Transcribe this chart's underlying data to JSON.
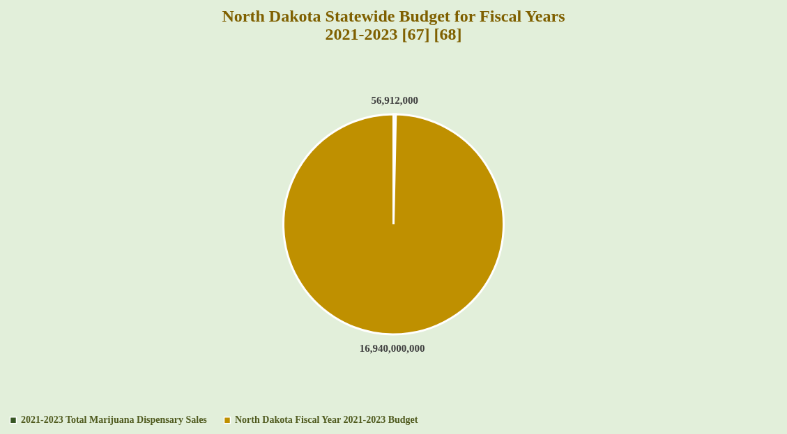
{
  "chart_data": {
    "type": "pie",
    "title": "North Dakota Statewide Budget for Fiscal Years 2021-2023 [67] [68]",
    "categories": [
      "2021-2023 Total Marijuana Dispensary Sales",
      "North Dakota Fiscal Year 2021-2023 Budget"
    ],
    "values": [
      56912000,
      16940000000
    ],
    "value_labels": [
      "56,912,000",
      "16,940,000,000"
    ],
    "colors": [
      "#375623",
      "#bf9000"
    ],
    "legend": "bottom"
  }
}
